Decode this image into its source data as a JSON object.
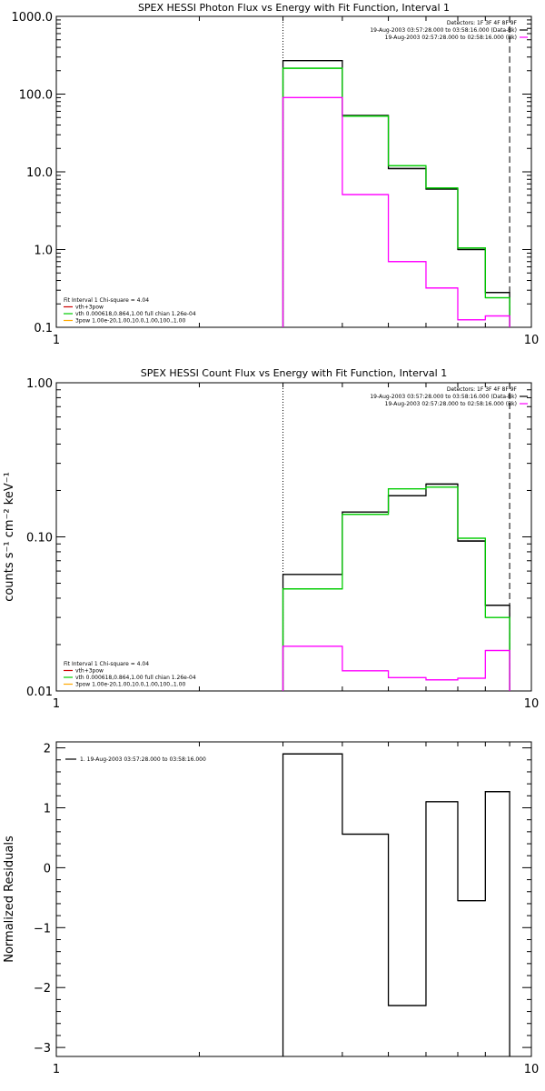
{
  "colors": {
    "total": "#000000",
    "fit": "#00cc00",
    "background": "#ff00ff",
    "axis": "#000000"
  },
  "chart_data": [
    {
      "type": "line",
      "title": "SPEX HESSI Photon Flux vs Energy with Fit Function, Interval 1",
      "xlabel": "",
      "ylabel": "",
      "xscale": "log",
      "yscale": "log",
      "xlim": [
        1,
        10
      ],
      "ylim": [
        0.1,
        1000
      ],
      "xticks": [
        "1",
        "10"
      ],
      "yticks": [
        "0.1",
        "1.0",
        "10.0",
        "100.0",
        "1000.0"
      ],
      "x_edges": [
        3,
        4,
        5,
        6,
        7,
        8,
        9
      ],
      "legend_top": [
        "Detectors: 1F 3F 4F 8F 9F",
        "19-Aug-2003 03:57:28.000 to 03:58:16.000 (Data-Bk)",
        "19-Aug-2003 02:57:28.000 to 02:58:16.000 (Bk)"
      ],
      "legend_top_position": "top-right",
      "legend_bottom": [
        "Fit Interval 1    Chi-square = 4.04",
        "vth+3pow",
        "vth 0.000618,0.864,1.00  full chian 1.26e-04",
        "3pow 1.00e-20,1.00,10.0,1.00,100.,1.00"
      ],
      "legend_bottom_position": "bottom-left",
      "series": [
        {
          "name": "19-Aug-2003 03:57:28.000 to 03:58:16.000 (Data-Bk)",
          "values": [
            270,
            53,
            11,
            6.0,
            1.0,
            0.28
          ]
        },
        {
          "name": "vth+3pow",
          "values": [
            215,
            52,
            12,
            6.2,
            1.05,
            0.24
          ]
        },
        {
          "name": "19-Aug-2003 02:57:28.000 to 02:58:16.000 (Bk)",
          "values": [
            90,
            5.1,
            0.7,
            0.32,
            0.125,
            0.14
          ]
        }
      ],
      "vlines": [
        3,
        9
      ]
    },
    {
      "type": "line",
      "title": "SPEX HESSI Count Flux vs Energy with Fit Function, Interval 1",
      "xlabel": "",
      "ylabel": "counts s⁻¹ cm⁻² keV⁻¹",
      "xscale": "log",
      "yscale": "log",
      "xlim": [
        1,
        10
      ],
      "ylim": [
        0.01,
        1.0
      ],
      "xticks": [
        "1",
        "10"
      ],
      "yticks": [
        "0.01",
        "0.10",
        "1.00"
      ],
      "x_edges": [
        3,
        4,
        5,
        6,
        7,
        8,
        9
      ],
      "legend_top": [
        "Detectors: 1F 3F 4F 8F 9F",
        "19-Aug-2003 03:57:28.000 to 03:58:16.000 (Data-Bk)",
        "19-Aug-2003 02:57:28.000 to 02:58:16.000 (Bk)"
      ],
      "legend_top_position": "top-right",
      "legend_bottom": [
        "Fit Interval 1    Chi-square = 4.04",
        "vth+3pow",
        "vth 0.000618,0.864,1.00  full chian 1.26e-04",
        "3pow 1.00e-20,1.00,10.0,1.00,100.,1.00"
      ],
      "legend_bottom_position": "bottom-left",
      "series": [
        {
          "name": "19-Aug-2003 03:57:28.000 to 03:58:16.000 (Data-Bk)",
          "values": [
            0.057,
            0.145,
            0.185,
            0.22,
            0.094,
            0.036
          ]
        },
        {
          "name": "vth+3pow",
          "values": [
            0.046,
            0.14,
            0.205,
            0.21,
            0.098,
            0.03
          ]
        },
        {
          "name": "19-Aug-2003 02:57:28.000 to 02:58:16.000 (Bk)",
          "values": [
            0.0195,
            0.0135,
            0.0122,
            0.0118,
            0.0121,
            0.0183
          ]
        }
      ],
      "vlines": [
        3,
        9
      ]
    },
    {
      "type": "line",
      "title": "",
      "xlabel": "",
      "ylabel": "Normalized Residuals",
      "xscale": "log",
      "yscale": "linear",
      "xlim": [
        1,
        10
      ],
      "ylim": [
        -3.15,
        2.1
      ],
      "xticks": [
        "1",
        "10"
      ],
      "yticks": [
        "−3",
        "−2",
        "−1",
        "0",
        "1",
        "2"
      ],
      "x_edges": [
        3,
        4,
        5,
        6,
        7,
        8,
        9
      ],
      "legend_top": [
        "1. 19-Aug-2003 03:57:28.000 to 03:58:16.000"
      ],
      "legend_top_position": "top-left",
      "legend_bottom": [],
      "series": [
        {
          "name": "1. 19-Aug-2003 03:57:28.000 to 03:58:16.000",
          "values": [
            1.9,
            0.56,
            -2.3,
            1.1,
            -0.55,
            1.27
          ]
        }
      ],
      "vlines": []
    }
  ]
}
